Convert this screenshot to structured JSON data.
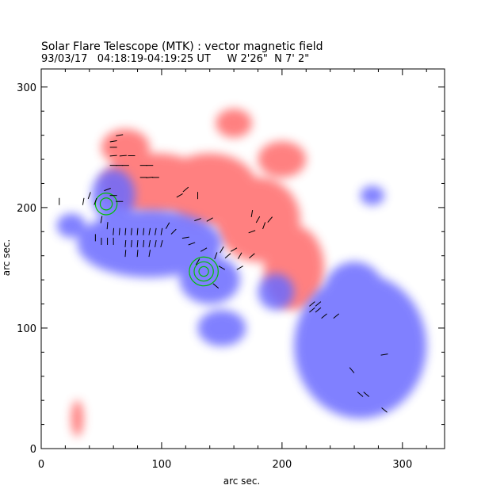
{
  "chart_data": {
    "type": "heatmap",
    "title": "Solar Flare Telescope (MTK) : vector magnetic field",
    "subtitle": "93/03/17   04:18:19-04:19:25 UT     W 2'26\"  N 7' 2\"",
    "xlabel": "arc sec.",
    "ylabel": "arc sec.",
    "xlim": [
      0,
      335
    ],
    "ylim": [
      0,
      315
    ],
    "xticks": [
      0,
      100,
      200,
      300
    ],
    "yticks": [
      0,
      100,
      200,
      300
    ],
    "colors": {
      "positive": "#ff6b6b",
      "negative": "#6b6bff",
      "vectors": "#000000",
      "contours": "#00c000"
    },
    "positive_regions": [
      {
        "cx": 95,
        "cy": 220,
        "rx": 45,
        "ry": 25
      },
      {
        "cx": 140,
        "cy": 215,
        "rx": 40,
        "ry": 30
      },
      {
        "cx": 180,
        "cy": 190,
        "rx": 35,
        "ry": 35
      },
      {
        "cx": 210,
        "cy": 150,
        "rx": 25,
        "ry": 35
      },
      {
        "cx": 70,
        "cy": 250,
        "rx": 20,
        "ry": 15
      },
      {
        "cx": 160,
        "cy": 270,
        "rx": 15,
        "ry": 12
      },
      {
        "cx": 200,
        "cy": 240,
        "rx": 20,
        "ry": 15
      },
      {
        "cx": 30,
        "cy": 25,
        "rx": 5,
        "ry": 15
      }
    ],
    "negative_regions": [
      {
        "cx": 90,
        "cy": 170,
        "rx": 60,
        "ry": 28
      },
      {
        "cx": 140,
        "cy": 140,
        "rx": 25,
        "ry": 20
      },
      {
        "cx": 60,
        "cy": 210,
        "rx": 18,
        "ry": 22
      },
      {
        "cx": 265,
        "cy": 85,
        "rx": 55,
        "ry": 60
      },
      {
        "cx": 260,
        "cy": 130,
        "rx": 25,
        "ry": 25
      },
      {
        "cx": 195,
        "cy": 130,
        "rx": 15,
        "ry": 15
      },
      {
        "cx": 150,
        "cy": 100,
        "rx": 20,
        "ry": 15
      },
      {
        "cx": 275,
        "cy": 210,
        "rx": 10,
        "ry": 8
      },
      {
        "cx": 25,
        "cy": 185,
        "rx": 12,
        "ry": 10
      }
    ],
    "vectors": [
      {
        "x": 60,
        "y": 235,
        "a": 0
      },
      {
        "x": 65,
        "y": 235,
        "a": 0
      },
      {
        "x": 70,
        "y": 235,
        "a": 0
      },
      {
        "x": 60,
        "y": 243,
        "a": 5
      },
      {
        "x": 68,
        "y": 243,
        "a": 5
      },
      {
        "x": 75,
        "y": 243,
        "a": 0
      },
      {
        "x": 85,
        "y": 235,
        "a": 0
      },
      {
        "x": 90,
        "y": 235,
        "a": 0
      },
      {
        "x": 85,
        "y": 225,
        "a": 0
      },
      {
        "x": 90,
        "y": 225,
        "a": 5
      },
      {
        "x": 95,
        "y": 225,
        "a": 0
      },
      {
        "x": 60,
        "y": 255,
        "a": 10
      },
      {
        "x": 60,
        "y": 250,
        "a": 0
      },
      {
        "x": 65,
        "y": 260,
        "a": 10
      },
      {
        "x": 55,
        "y": 215,
        "a": 20
      },
      {
        "x": 60,
        "y": 210,
        "a": 0
      },
      {
        "x": 65,
        "y": 205,
        "a": 0
      },
      {
        "x": 45,
        "y": 205,
        "a": 70
      },
      {
        "x": 35,
        "y": 205,
        "a": 80
      },
      {
        "x": 40,
        "y": 210,
        "a": 70
      },
      {
        "x": 50,
        "y": 190,
        "a": 80
      },
      {
        "x": 55,
        "y": 185,
        "a": 85
      },
      {
        "x": 60,
        "y": 180,
        "a": 85
      },
      {
        "x": 65,
        "y": 180,
        "a": 85
      },
      {
        "x": 70,
        "y": 180,
        "a": 85
      },
      {
        "x": 75,
        "y": 180,
        "a": 85
      },
      {
        "x": 80,
        "y": 180,
        "a": 85
      },
      {
        "x": 85,
        "y": 180,
        "a": 85
      },
      {
        "x": 90,
        "y": 180,
        "a": 80
      },
      {
        "x": 95,
        "y": 180,
        "a": 80
      },
      {
        "x": 100,
        "y": 180,
        "a": 80
      },
      {
        "x": 45,
        "y": 175,
        "a": 90
      },
      {
        "x": 50,
        "y": 172,
        "a": 90
      },
      {
        "x": 55,
        "y": 172,
        "a": 90
      },
      {
        "x": 60,
        "y": 172,
        "a": 90
      },
      {
        "x": 70,
        "y": 170,
        "a": 85
      },
      {
        "x": 75,
        "y": 170,
        "a": 85
      },
      {
        "x": 80,
        "y": 170,
        "a": 85
      },
      {
        "x": 85,
        "y": 170,
        "a": 85
      },
      {
        "x": 90,
        "y": 170,
        "a": 80
      },
      {
        "x": 95,
        "y": 170,
        "a": 80
      },
      {
        "x": 100,
        "y": 170,
        "a": 75
      },
      {
        "x": 70,
        "y": 162,
        "a": 85
      },
      {
        "x": 80,
        "y": 162,
        "a": 85
      },
      {
        "x": 90,
        "y": 162,
        "a": 80
      },
      {
        "x": 105,
        "y": 185,
        "a": 60
      },
      {
        "x": 110,
        "y": 180,
        "a": 45
      },
      {
        "x": 120,
        "y": 175,
        "a": 10
      },
      {
        "x": 125,
        "y": 170,
        "a": 20
      },
      {
        "x": 115,
        "y": 210,
        "a": 30
      },
      {
        "x": 120,
        "y": 215,
        "a": 40
      },
      {
        "x": 130,
        "y": 210,
        "a": 90
      },
      {
        "x": 130,
        "y": 190,
        "a": 20
      },
      {
        "x": 140,
        "y": 190,
        "a": 30
      },
      {
        "x": 135,
        "y": 165,
        "a": 30
      },
      {
        "x": 145,
        "y": 160,
        "a": 70
      },
      {
        "x": 150,
        "y": 165,
        "a": 60
      },
      {
        "x": 155,
        "y": 160,
        "a": 40
      },
      {
        "x": 160,
        "y": 165,
        "a": 30
      },
      {
        "x": 165,
        "y": 160,
        "a": 60
      },
      {
        "x": 150,
        "y": 150,
        "a": -30
      },
      {
        "x": 145,
        "y": 135,
        "a": -40
      },
      {
        "x": 130,
        "y": 155,
        "a": 60
      },
      {
        "x": 175,
        "y": 195,
        "a": 80
      },
      {
        "x": 180,
        "y": 190,
        "a": 60
      },
      {
        "x": 185,
        "y": 185,
        "a": 70
      },
      {
        "x": 190,
        "y": 190,
        "a": 50
      },
      {
        "x": 175,
        "y": 180,
        "a": 20
      },
      {
        "x": 175,
        "y": 160,
        "a": 40
      },
      {
        "x": 165,
        "y": 150,
        "a": 30
      },
      {
        "x": 225,
        "y": 120,
        "a": 40
      },
      {
        "x": 230,
        "y": 120,
        "a": 40
      },
      {
        "x": 225,
        "y": 115,
        "a": 40
      },
      {
        "x": 230,
        "y": 115,
        "a": 40
      },
      {
        "x": 235,
        "y": 110,
        "a": 40
      },
      {
        "x": 245,
        "y": 110,
        "a": 40
      },
      {
        "x": 285,
        "y": 78,
        "a": 10
      },
      {
        "x": 258,
        "y": 65,
        "a": -50
      },
      {
        "x": 265,
        "y": 45,
        "a": -40
      },
      {
        "x": 270,
        "y": 45,
        "a": -40
      },
      {
        "x": 285,
        "y": 32,
        "a": -40
      },
      {
        "x": 15,
        "y": 205,
        "a": 90
      }
    ],
    "contours": [
      {
        "cx": 54,
        "cy": 203,
        "r": [
          5,
          9
        ]
      },
      {
        "cx": 135,
        "cy": 147,
        "r": [
          4,
          8,
          12
        ]
      }
    ]
  }
}
